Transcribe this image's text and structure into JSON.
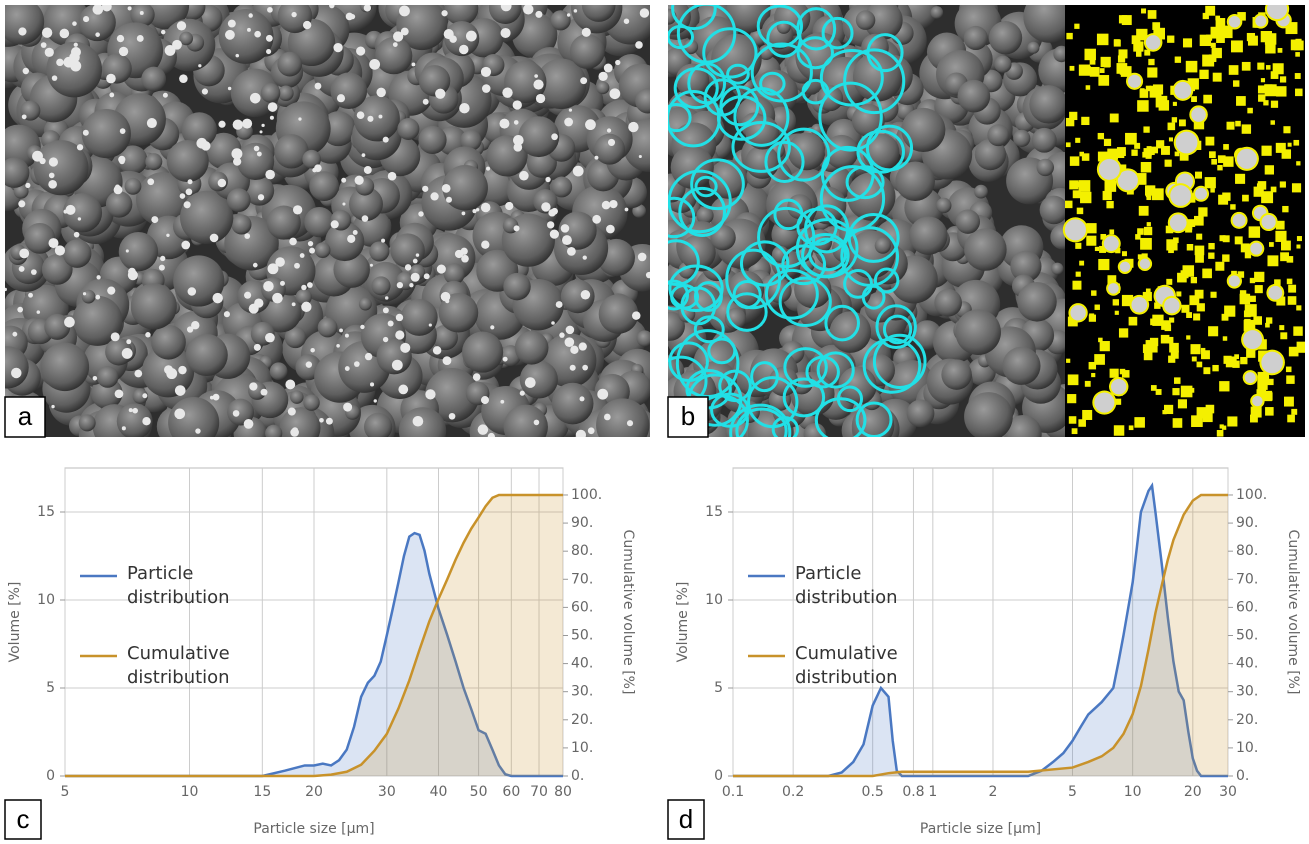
{
  "panel_labels": [
    "a",
    "b",
    "c",
    "d"
  ],
  "chart_data": [
    {
      "type": "area",
      "xlabel": "Particle size [μm]",
      "ylabel": "Volume [%]",
      "y2label": "Cumulative volume [%]",
      "log_x": true,
      "grid": true,
      "legend_position": "upper left",
      "xlim": [
        5,
        80
      ],
      "xticks": [
        5,
        10,
        15,
        20,
        30,
        40,
        50,
        60,
        70,
        80
      ],
      "ylim": [
        0,
        17.5
      ],
      "yticks": [
        0,
        5,
        10,
        15
      ],
      "y2lim": [
        0,
        109.6
      ],
      "y2ticks": [
        {
          "value": 0,
          "label": "0."
        },
        {
          "value": 10,
          "label": "10."
        },
        {
          "value": 20,
          "label": "20."
        },
        {
          "value": 30,
          "label": "30."
        },
        {
          "value": 40,
          "label": "40."
        },
        {
          "value": 50,
          "label": "50."
        },
        {
          "value": 60,
          "label": "60."
        },
        {
          "value": 70,
          "label": "70."
        },
        {
          "value": 80,
          "label": "80."
        },
        {
          "value": 90,
          "label": "90."
        },
        {
          "value": 100,
          "label": "100."
        }
      ],
      "series": [
        {
          "name": "Particle distribution",
          "color": "#4a78c2",
          "x": [
            5,
            15,
            17,
            19,
            20,
            21,
            22,
            23,
            24,
            25,
            26,
            27,
            28,
            29,
            30,
            31,
            32,
            33,
            34,
            35,
            36,
            37,
            38,
            40,
            42,
            44,
            46,
            48,
            50,
            52,
            54,
            56,
            58,
            60,
            80
          ],
          "values": [
            0,
            0,
            0.3,
            0.6,
            0.6,
            0.7,
            0.6,
            0.9,
            1.5,
            2.8,
            4.5,
            5.3,
            5.7,
            6.5,
            8.0,
            9.5,
            11,
            12.5,
            13.6,
            13.8,
            13.7,
            12.8,
            11.5,
            9.5,
            8.0,
            6.5,
            5.0,
            3.8,
            2.6,
            2.4,
            1.5,
            0.6,
            0.1,
            0,
            0
          ]
        },
        {
          "name": "Cumulative distribution",
          "color": "#c8922a",
          "axis": "y2",
          "x": [
            5,
            20,
            22,
            24,
            26,
            28,
            30,
            32,
            34,
            36,
            38,
            40,
            42,
            44,
            46,
            48,
            50,
            52,
            54,
            56,
            80
          ],
          "values": [
            0,
            0,
            0.5,
            1.5,
            4,
            9,
            15,
            24,
            34,
            45,
            55,
            63,
            70,
            77,
            83,
            88,
            92,
            96,
            99,
            100,
            100
          ]
        }
      ]
    },
    {
      "type": "area",
      "xlabel": "Particle size [μm]",
      "ylabel": "Volume [%]",
      "y2label": "Cumulative volume [%]",
      "log_x": true,
      "grid": true,
      "legend_position": "upper left",
      "xlim": [
        0.1,
        30
      ],
      "xticks": [
        0.1,
        0.2,
        0.5,
        0.8,
        1,
        2,
        5,
        10,
        20,
        30
      ],
      "ylim": [
        0,
        17.5
      ],
      "yticks": [
        0,
        5,
        10,
        15
      ],
      "y2lim": [
        0,
        109.6
      ],
      "y2ticks": [
        {
          "value": 0,
          "label": "0."
        },
        {
          "value": 10,
          "label": "10."
        },
        {
          "value": 20,
          "label": "20."
        },
        {
          "value": 30,
          "label": "30."
        },
        {
          "value": 40,
          "label": "40."
        },
        {
          "value": 50,
          "label": "50."
        },
        {
          "value": 60,
          "label": "60."
        },
        {
          "value": 70,
          "label": "70."
        },
        {
          "value": 80,
          "label": "80."
        },
        {
          "value": 90,
          "label": "90."
        },
        {
          "value": 100,
          "label": "100."
        }
      ],
      "series": [
        {
          "name": "Particle distribution",
          "color": "#4a78c2",
          "x": [
            0.1,
            0.3,
            0.35,
            0.4,
            0.45,
            0.5,
            0.55,
            0.6,
            0.63,
            0.66,
            0.7,
            3,
            3.5,
            4,
            4.5,
            5,
            5.5,
            6,
            7,
            8,
            8.5,
            9,
            10,
            10.5,
            11,
            12,
            12.5,
            13,
            14,
            15,
            16,
            17,
            18,
            19,
            20,
            21,
            22,
            30
          ],
          "values": [
            0,
            0,
            0.2,
            0.8,
            1.8,
            4.0,
            5.0,
            4.5,
            2.0,
            0.3,
            0,
            0,
            0.3,
            0.8,
            1.3,
            2.0,
            2.8,
            3.5,
            4.2,
            5.0,
            6.5,
            8.0,
            11,
            13,
            15,
            16.2,
            16.5,
            15,
            12,
            9,
            6.5,
            4.8,
            4.3,
            2.5,
            1.0,
            0.3,
            0,
            0
          ]
        },
        {
          "name": "Cumulative distribution",
          "color": "#c8922a",
          "axis": "y2",
          "x": [
            0.1,
            0.5,
            0.6,
            0.7,
            3,
            5,
            6,
            7,
            8,
            9,
            10,
            11,
            12,
            13,
            14,
            15,
            16,
            18,
            20,
            22,
            30
          ],
          "values": [
            0,
            0,
            1,
            1.5,
            1.5,
            3,
            5,
            7,
            10,
            15,
            22,
            32,
            45,
            58,
            68,
            77,
            84,
            93,
            98,
            100,
            100
          ]
        }
      ]
    }
  ]
}
